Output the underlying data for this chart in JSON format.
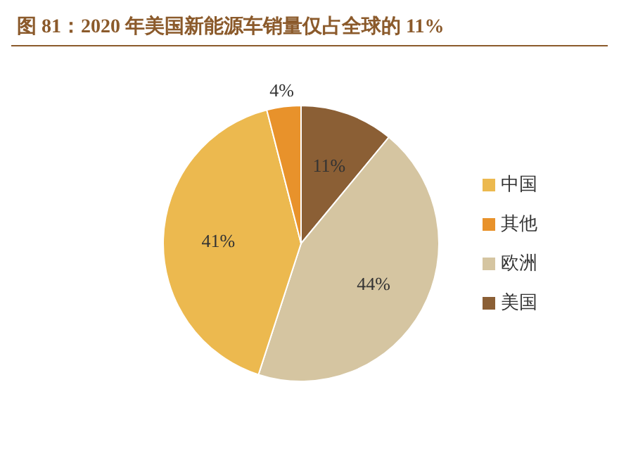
{
  "chart_data": {
    "type": "pie",
    "title": "图 81：2020 年美国新能源车销量仅占全球的 11%",
    "categories": [
      "美国",
      "欧洲",
      "中国",
      "其他"
    ],
    "values": [
      11,
      44,
      41,
      4
    ],
    "colors": [
      "#8b5f35",
      "#d5c5a1",
      "#ecb94f",
      "#e8922b"
    ],
    "value_labels": [
      "11%",
      "44%",
      "41%",
      "4%"
    ],
    "legend": "right"
  }
}
